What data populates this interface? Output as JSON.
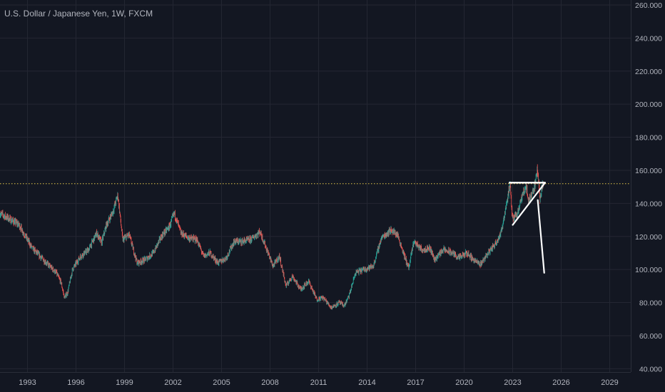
{
  "title": "U.S. Dollar / Japanese Yen, 1W, FXCM",
  "theme": {
    "background": "#131722",
    "grid": "#242733",
    "axis_text": "#b2b5be",
    "up_color": "#26a69a",
    "down_color": "#ef5350",
    "level_line_color": "#e6c94a",
    "drawing_color": "#ffffff"
  },
  "chart_data": {
    "type": "candlestick",
    "timeframe": "1W",
    "x_range": [
      1991.3,
      2030.3
    ],
    "ylim": [
      38,
      263
    ],
    "x_ticks": [
      "1993",
      "1996",
      "1999",
      "2002",
      "2005",
      "2008",
      "2011",
      "2014",
      "2017",
      "2020",
      "2023",
      "2026",
      "2029"
    ],
    "y_ticks": [
      "40.000",
      "60.000",
      "80.000",
      "100.000",
      "120.000",
      "140.000",
      "160.000",
      "180.000",
      "200.000",
      "220.000",
      "240.000",
      "260.000"
    ],
    "grid": true,
    "horizontal_level": {
      "value": 151.9,
      "style": "dotted"
    },
    "price_path": [
      [
        1991.3,
        134
      ],
      [
        1992.0,
        130
      ],
      [
        1992.5,
        127
      ],
      [
        1993.3,
        113
      ],
      [
        1993.8,
        108
      ],
      [
        1994.3,
        103
      ],
      [
        1994.8,
        98
      ],
      [
        1995.1,
        92
      ],
      [
        1995.3,
        83
      ],
      [
        1995.5,
        86
      ],
      [
        1995.8,
        100
      ],
      [
        1996.3,
        108
      ],
      [
        1996.8,
        112
      ],
      [
        1997.3,
        122
      ],
      [
        1997.6,
        116
      ],
      [
        1997.9,
        127
      ],
      [
        1998.3,
        135
      ],
      [
        1998.6,
        145
      ],
      [
        1998.75,
        132
      ],
      [
        1998.9,
        118
      ],
      [
        1999.3,
        121
      ],
      [
        1999.8,
        104
      ],
      [
        2000.3,
        106
      ],
      [
        2000.8,
        110
      ],
      [
        2001.3,
        120
      ],
      [
        2001.8,
        126
      ],
      [
        2002.1,
        134
      ],
      [
        2002.5,
        122
      ],
      [
        2003.0,
        119
      ],
      [
        2003.5,
        118
      ],
      [
        2003.9,
        108
      ],
      [
        2004.3,
        110
      ],
      [
        2004.8,
        104
      ],
      [
        2005.3,
        107
      ],
      [
        2005.8,
        117
      ],
      [
        2006.3,
        117
      ],
      [
        2006.8,
        118
      ],
      [
        2007.4,
        123
      ],
      [
        2007.7,
        115
      ],
      [
        2008.2,
        102
      ],
      [
        2008.6,
        108
      ],
      [
        2009.0,
        90
      ],
      [
        2009.4,
        96
      ],
      [
        2009.9,
        88
      ],
      [
        2010.4,
        93
      ],
      [
        2010.9,
        82
      ],
      [
        2011.3,
        83
      ],
      [
        2011.8,
        77
      ],
      [
        2012.3,
        80
      ],
      [
        2012.6,
        78
      ],
      [
        2012.9,
        84
      ],
      [
        2013.3,
        98
      ],
      [
        2013.8,
        100
      ],
      [
        2014.4,
        102
      ],
      [
        2014.9,
        119
      ],
      [
        2015.5,
        124
      ],
      [
        2015.9,
        121
      ],
      [
        2016.4,
        106
      ],
      [
        2016.6,
        101
      ],
      [
        2016.9,
        117
      ],
      [
        2017.4,
        112
      ],
      [
        2017.9,
        113
      ],
      [
        2018.2,
        106
      ],
      [
        2018.7,
        112
      ],
      [
        2019.3,
        110
      ],
      [
        2019.7,
        107
      ],
      [
        2020.2,
        110
      ],
      [
        2020.6,
        106
      ],
      [
        2021.0,
        103
      ],
      [
        2021.5,
        110
      ],
      [
        2021.9,
        115
      ],
      [
        2022.3,
        122
      ],
      [
        2022.6,
        138
      ],
      [
        2022.85,
        151
      ],
      [
        2023.0,
        131
      ],
      [
        2023.3,
        134
      ],
      [
        2023.6,
        144
      ],
      [
        2023.85,
        151
      ],
      [
        2024.0,
        141
      ],
      [
        2024.4,
        151
      ],
      [
        2024.55,
        161
      ],
      [
        2024.7,
        143
      ],
      [
        2024.9,
        153
      ]
    ],
    "drawings": [
      {
        "type": "trendline",
        "points": [
          [
            2022.8,
            152.5
          ],
          [
            2025.0,
            152.5
          ]
        ]
      },
      {
        "type": "trendline",
        "points": [
          [
            2022.8,
            152.5
          ],
          [
            2025.0,
            152.5
          ]
        ]
      },
      {
        "type": "trendline",
        "points": [
          [
            2023.0,
            127
          ],
          [
            2025.0,
            152.5
          ]
        ]
      },
      {
        "type": "trendline",
        "points": [
          [
            2024.55,
            142
          ],
          [
            2024.95,
            98
          ]
        ]
      }
    ]
  }
}
